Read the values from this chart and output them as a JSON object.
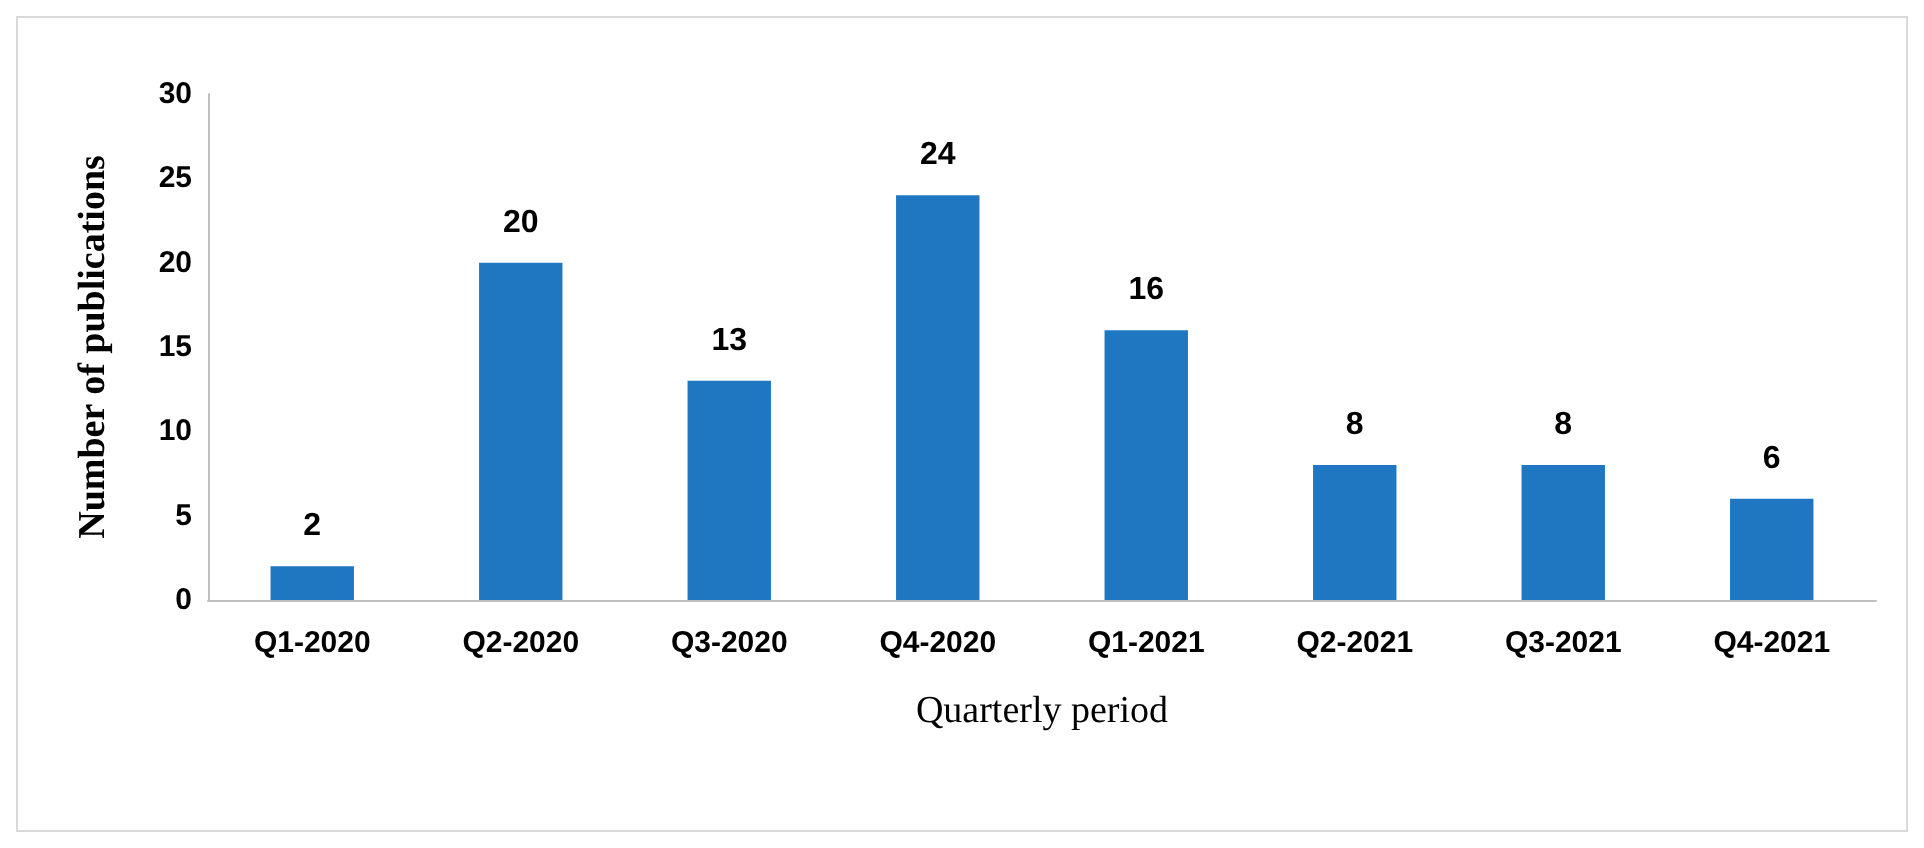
{
  "chart_data": {
    "type": "bar",
    "xlabel": "Quarterly period",
    "ylabel": "Number of publications",
    "categories": [
      "Q1-2020",
      "Q2-2020",
      "Q3-2020",
      "Q4-2020",
      "Q1-2021",
      "Q2-2021",
      "Q3-2021",
      "Q4-2021"
    ],
    "values": [
      2,
      20,
      13,
      24,
      16,
      8,
      8,
      6
    ],
    "color": "#1f77c1",
    "ylim": [
      0,
      30
    ],
    "yticks": [
      0,
      5,
      10,
      15,
      20,
      25,
      30
    ],
    "grid": false,
    "data_labels": true
  }
}
